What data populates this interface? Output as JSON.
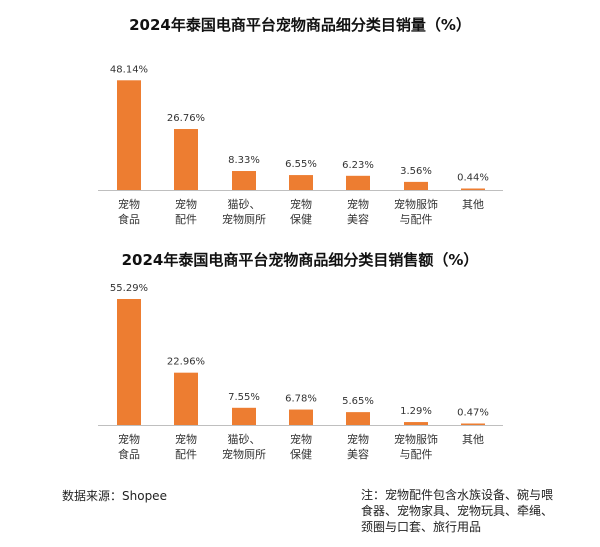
{
  "chart_data": [
    {
      "type": "bar",
      "title": "2024年泰国电商平台宠物商品细分类目销量（%）",
      "categories": [
        [
          "宠物",
          "食品"
        ],
        [
          "宠物",
          "配件"
        ],
        [
          "猫砂、",
          "宠物厕所"
        ],
        [
          "宠物",
          "保健"
        ],
        [
          "宠物",
          "美容"
        ],
        [
          "宠物服饰",
          "与配件"
        ],
        [
          "其他"
        ]
      ],
      "values": [
        48.14,
        26.76,
        8.33,
        6.55,
        6.23,
        3.56,
        0.44
      ],
      "value_labels": [
        "48.14%",
        "26.76%",
        "8.33%",
        "6.55%",
        "6.23%",
        "3.56%",
        "0.44%"
      ],
      "ylim": [
        0,
        55.29
      ],
      "grid": false,
      "legend": "none",
      "bar_color": "#ED7D31",
      "axis_color": "#BFBFBF"
    },
    {
      "type": "bar",
      "title": "2024年泰国电商平台宠物商品细分类目销售额（%）",
      "categories": [
        [
          "宠物",
          "食品"
        ],
        [
          "宠物",
          "配件"
        ],
        [
          "猫砂、",
          "宠物厕所"
        ],
        [
          "宠物",
          "保健"
        ],
        [
          "宠物",
          "美容"
        ],
        [
          "宠物服饰",
          "与配件"
        ],
        [
          "其他"
        ]
      ],
      "values": [
        55.29,
        22.96,
        7.55,
        6.78,
        5.65,
        1.29,
        0.47
      ],
      "value_labels": [
        "55.29%",
        "22.96%",
        "7.55%",
        "6.78%",
        "5.65%",
        "1.29%",
        "0.47%"
      ],
      "ylim": [
        0,
        55.29
      ],
      "grid": false,
      "legend": "none",
      "bar_color": "#ED7D31",
      "axis_color": "#BFBFBF"
    }
  ],
  "footer": {
    "source": "数据来源：Shopee",
    "note": "注：宠物配件包含水族设备、碗与喂食器、宠物家具、宠物玩具、牵绳、颈圈与口套、旅行用品"
  }
}
